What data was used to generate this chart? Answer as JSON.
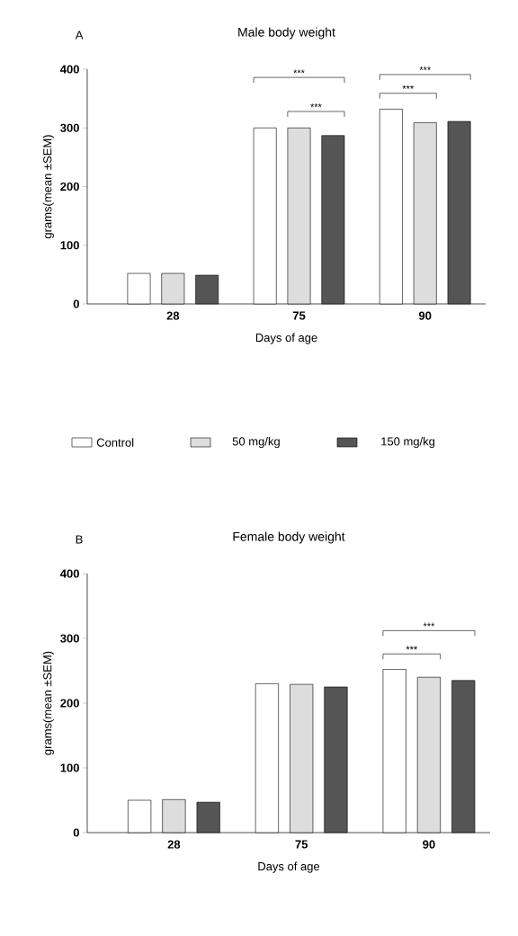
{
  "chart_data": [
    {
      "type": "bar",
      "title": "Male body weight",
      "xlabel": "Days of age",
      "ylabel": "grams(mean ±SEM)",
      "categories": [
        "28",
        "75",
        "90"
      ],
      "series": [
        {
          "name": "Control",
          "color": "#ffffff",
          "values": [
            52,
            300,
            332
          ]
        },
        {
          "name": "50 mg/kg",
          "color": "#dddddd",
          "values": [
            52,
            300,
            309
          ]
        },
        {
          "name": "150 mg/kg",
          "color": "#555555",
          "values": [
            49,
            287,
            311
          ]
        }
      ],
      "ylim": [
        0,
        400
      ],
      "yticks": [
        0,
        100,
        200,
        300,
        400
      ],
      "legend": "bottom",
      "annotations": [
        "A",
        "***",
        "***",
        "***",
        "***"
      ]
    },
    {
      "type": "bar",
      "title": "Female body weight",
      "xlabel": "Days of age",
      "ylabel": "grams(mean ±SEM)",
      "categories": [
        "28",
        "75",
        "90"
      ],
      "series": [
        {
          "color": "#ffffff",
          "values": [
            50,
            230,
            252
          ]
        },
        {
          "color": "#dddddd",
          "values": [
            51,
            229,
            240
          ]
        },
        {
          "color": "#555555",
          "values": [
            47,
            225,
            235
          ]
        }
      ],
      "ylim": [
        0,
        400
      ],
      "yticks": [
        0,
        100,
        200,
        300,
        400
      ],
      "annotations": [
        "B",
        "***",
        "***"
      ]
    }
  ]
}
